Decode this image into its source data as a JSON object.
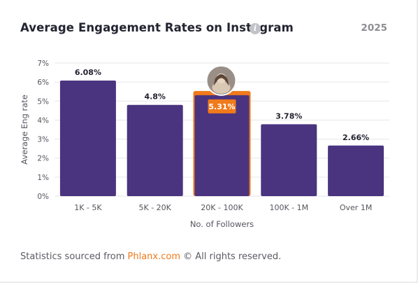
{
  "header": {
    "title": "Average Engagement Rates on Instagram",
    "info_icon": "info-icon",
    "year": "2025"
  },
  "footer": {
    "prefix": "Statistics sourced from ",
    "brand": "Phlanx.com",
    "suffix": " © All rights reserved."
  },
  "colors": {
    "bar": "#4a3480",
    "highlight": "#f07a1c",
    "grid": "#e6e6ea",
    "brand": "#f07a1c"
  },
  "chart_data": {
    "type": "bar",
    "categories": [
      "1K - 5K",
      "5K - 20K",
      "20K - 100K",
      "100K - 1M",
      "Over 1M"
    ],
    "values": [
      6.08,
      4.8,
      5.31,
      3.78,
      2.66
    ],
    "value_labels": [
      "6.08%",
      "4.8%",
      "5.31%",
      "3.78%",
      "2.66%"
    ],
    "highlight_index": 2,
    "xlabel": "No. of Followers",
    "ylabel": "Average Eng rate",
    "ylim": [
      0,
      7
    ],
    "yticks": [
      "0%",
      "1%",
      "2%",
      "3%",
      "4%",
      "5%",
      "6%",
      "7%"
    ],
    "grid": true,
    "legend": "none"
  }
}
